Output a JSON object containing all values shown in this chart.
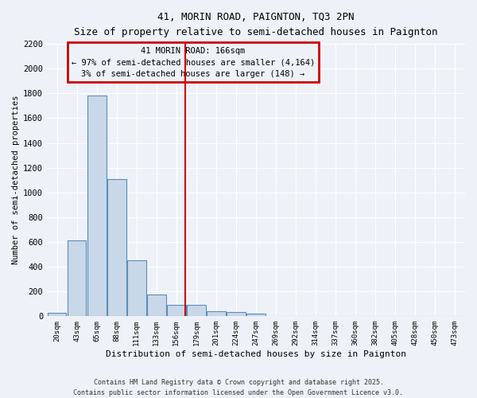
{
  "title1": "41, MORIN ROAD, PAIGNTON, TQ3 2PN",
  "title2": "Size of property relative to semi-detached houses in Paignton",
  "xlabel": "Distribution of semi-detached houses by size in Paignton",
  "ylabel": "Number of semi-detached properties",
  "bar_labels": [
    "20sqm",
    "43sqm",
    "65sqm",
    "88sqm",
    "111sqm",
    "133sqm",
    "156sqm",
    "179sqm",
    "201sqm",
    "224sqm",
    "247sqm",
    "269sqm",
    "292sqm",
    "314sqm",
    "337sqm",
    "360sqm",
    "382sqm",
    "405sqm",
    "428sqm",
    "450sqm",
    "473sqm"
  ],
  "bar_values": [
    30,
    610,
    1780,
    1110,
    450,
    175,
    90,
    90,
    40,
    35,
    20,
    0,
    0,
    0,
    0,
    0,
    0,
    0,
    0,
    0,
    0
  ],
  "bar_color": "#c8d8e8",
  "bar_edge_color": "#5b8db8",
  "vline_color": "#cc0000",
  "annotation_title": "41 MORIN ROAD: 166sqm",
  "annotation_line1": "← 97% of semi-detached houses are smaller (4,164)",
  "annotation_line2": "3% of semi-detached houses are larger (148) →",
  "annotation_box_color": "#cc0000",
  "ylim": [
    0,
    2200
  ],
  "yticks": [
    0,
    200,
    400,
    600,
    800,
    1000,
    1200,
    1400,
    1600,
    1800,
    2000,
    2200
  ],
  "background_color": "#eef2f8",
  "grid_color": "#ffffff",
  "footer1": "Contains HM Land Registry data © Crown copyright and database right 2025.",
  "footer2": "Contains public sector information licensed under the Open Government Licence v3.0."
}
